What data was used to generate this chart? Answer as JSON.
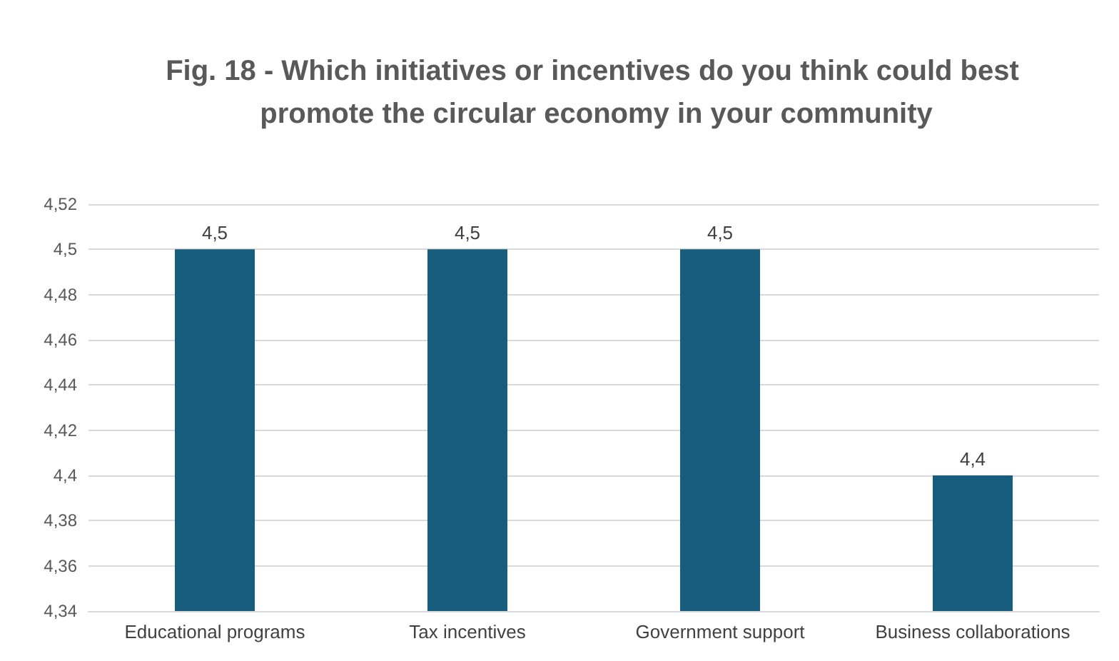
{
  "chart_data": {
    "type": "bar",
    "title": "Fig. 18 - Which initiatives or incentives do you think could best promote the circular economy in your community",
    "categories": [
      "Educational programs",
      "Tax incentives",
      "Government support",
      "Business collaborations"
    ],
    "values": [
      4.5,
      4.5,
      4.5,
      4.4
    ],
    "value_labels": [
      "4,5",
      "4,5",
      "4,5",
      "4,4"
    ],
    "color": "#175d7e",
    "ylim": [
      4.34,
      4.52
    ],
    "yticks": [
      {
        "value": 4.34,
        "label": "4,34"
      },
      {
        "value": 4.36,
        "label": "4,36"
      },
      {
        "value": 4.38,
        "label": "4,38"
      },
      {
        "value": 4.4,
        "label": "4,4"
      },
      {
        "value": 4.42,
        "label": "4,42"
      },
      {
        "value": 4.44,
        "label": "4,44"
      },
      {
        "value": 4.46,
        "label": "4,46"
      },
      {
        "value": 4.48,
        "label": "4,48"
      },
      {
        "value": 4.5,
        "label": "4,5"
      },
      {
        "value": 4.52,
        "label": "4,52"
      }
    ],
    "grid": true
  }
}
